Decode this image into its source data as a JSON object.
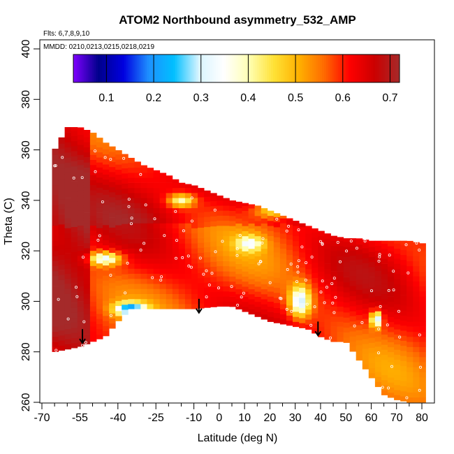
{
  "chart_data": {
    "type": "heatmap",
    "title": "ATOM2 Northbound asymmetry_532_AMP",
    "annotations": {
      "flights": "Flts: 6,7,8,9,10",
      "dates": "MMDD: 0210,0213,0215,0218,0219"
    },
    "xlabel": "Latitude (deg N)",
    "ylabel": "Theta (C)",
    "xlim": [
      -70,
      80
    ],
    "ylim": [
      260,
      400
    ],
    "x_ticks": [
      -70,
      -55,
      -40,
      -25,
      -10,
      0,
      10,
      20,
      30,
      40,
      50,
      60,
      70,
      80
    ],
    "x_tick_labels": [
      "-70",
      "-55",
      "-40",
      "-25",
      "-10",
      "0",
      "10",
      "20",
      "30",
      "40",
      "50",
      "60",
      "70",
      "80"
    ],
    "x_minor_ticks": [
      -65,
      -60,
      -50,
      -45,
      -35,
      -30,
      -20,
      -15,
      -5,
      5,
      15,
      25,
      35,
      45,
      55,
      65,
      75
    ],
    "y_ticks": [
      260,
      280,
      300,
      320,
      340,
      360,
      380,
      400
    ],
    "y_tick_labels": [
      "260",
      "280",
      "300",
      "320",
      "340",
      "360",
      "380",
      "400"
    ],
    "colorbar": {
      "range": [
        0.03,
        0.72
      ],
      "tick_values": [
        0.1,
        0.2,
        0.3,
        0.4,
        0.5,
        0.6,
        0.7
      ],
      "tick_labels": [
        "0.1",
        "0.2",
        "0.3",
        "0.4",
        "0.5",
        "0.6",
        "0.7"
      ],
      "colors": [
        "#7f00ff",
        "#00008b",
        "#0000e0",
        "#1e90ff",
        "#00bfff",
        "#d9f4ff",
        "#ffffff",
        "#ffffb3",
        "#ffe135",
        "#ffb000",
        "#ff6a00",
        "#ff0000",
        "#cc0000",
        "#a52a2a"
      ]
    },
    "coverage": {
      "latitude": [
        -65,
        -60,
        -55,
        -50,
        -45,
        -40,
        -35,
        -30,
        -25,
        -20,
        -15,
        -10,
        -5,
        0,
        5,
        10,
        15,
        20,
        25,
        30,
        35,
        40,
        45,
        50,
        55,
        60,
        65,
        70,
        75,
        80
      ],
      "theta_bottom": [
        280,
        281,
        282,
        284,
        286,
        292,
        297,
        297,
        297,
        297,
        297,
        297,
        297.5,
        298,
        298,
        296,
        294,
        292,
        291,
        290,
        289,
        286,
        284,
        284,
        277,
        270,
        263,
        261,
        260,
        260
      ],
      "theta_top": [
        360,
        369,
        369,
        367,
        363,
        360,
        357,
        354,
        352,
        350,
        347,
        346,
        344,
        342,
        340,
        339,
        338,
        336,
        334,
        332,
        330,
        328,
        326,
        325,
        325,
        324,
        324,
        324,
        324,
        323
      ]
    },
    "values_summary": "Mostly 0.55-0.7 (orange/red); high-latitude south and mid-latitude bands near 0.7; localized minima 0.2-0.35 near (-35,297), (-45,317), (32,300), (62,293)",
    "markers": [
      {
        "type": "arrow_down",
        "latitude": -54,
        "theta": 289
      },
      {
        "type": "arrow_down",
        "latitude": -8,
        "theta": 301
      },
      {
        "type": "arrow_down",
        "latitude": 39,
        "theta": 292
      }
    ]
  }
}
